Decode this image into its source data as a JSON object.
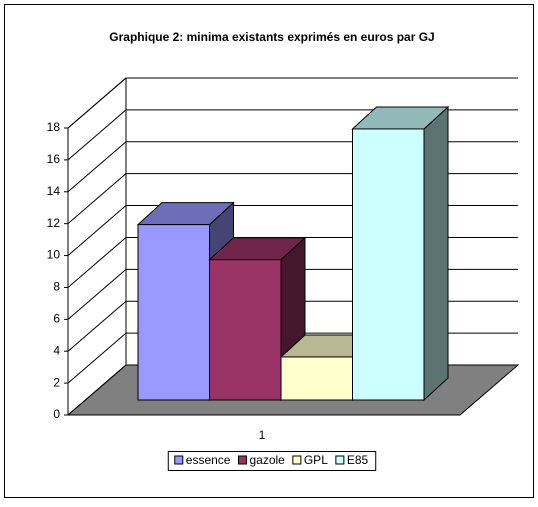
{
  "chart_data": {
    "type": "bar",
    "title": "Graphique 2: minima existants exprimés en euros par GJ",
    "categories": [
      "1"
    ],
    "series": [
      {
        "name": "essence",
        "color": "#9999ff",
        "values": [
          11
        ]
      },
      {
        "name": "gazole",
        "color": "#993366",
        "values": [
          8.8
        ]
      },
      {
        "name": "GPL",
        "color": "#ffffcc",
        "values": [
          2.7
        ]
      },
      {
        "name": "E85",
        "color": "#ccffff",
        "values": [
          17
        ]
      }
    ],
    "ylim": [
      0,
      18
    ],
    "yticks": [
      0,
      2,
      4,
      6,
      8,
      10,
      12,
      14,
      16,
      18
    ],
    "grid": true,
    "legend": "bottom"
  }
}
